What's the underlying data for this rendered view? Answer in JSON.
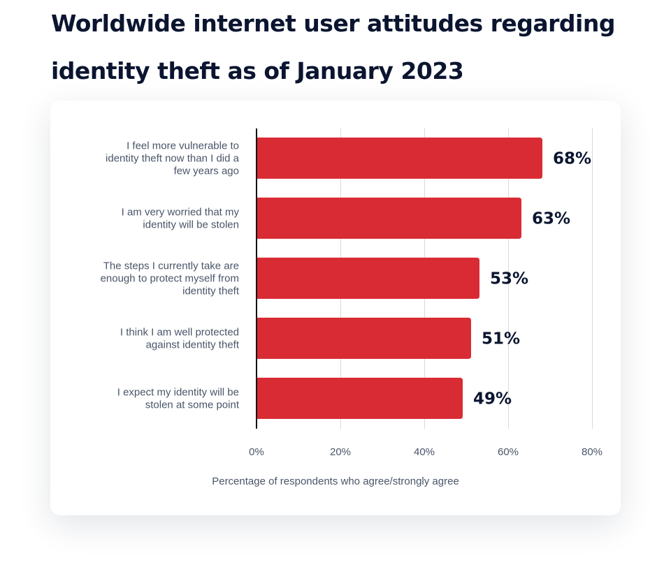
{
  "page": {
    "title_line1": "Worldwide internet user attitudes regarding",
    "title_line2": "identity theft as of January 2023"
  },
  "chart_data": {
    "type": "bar",
    "orientation": "horizontal",
    "categories": [
      "I feel more vulnerable to identity theft now than I did a few years ago",
      "I am very worried that my identity will be stolen",
      "The steps I currently take are enough to protect myself from identity theft",
      "I think I am well protected against identity theft",
      "I expect my identity will be stolen at some point"
    ],
    "category_lines": [
      [
        "I feel more vulnerable to",
        "identity theft now than I did a",
        "few years ago"
      ],
      [
        "I am very worried that my",
        "identity will be stolen"
      ],
      [
        "The steps I currently take are",
        "enough to protect myself from",
        "identity theft"
      ],
      [
        "I think I am well protected",
        "against identity theft"
      ],
      [
        "I expect my identity will be",
        "stolen at some point"
      ]
    ],
    "values": [
      68,
      63,
      53,
      51,
      49
    ],
    "data_labels": [
      "68%",
      "63%",
      "53%",
      "51%",
      "49%"
    ],
    "xlabel": "Percentage of respondents who agree/strongly agree",
    "xlim": [
      0,
      80
    ],
    "x_ticks": [
      0,
      20,
      40,
      60,
      80
    ],
    "x_tick_labels": [
      "0%",
      "20%",
      "40%",
      "60%",
      "80%"
    ],
    "grid": true,
    "bar_color": "#d92b33",
    "gridline_color": "#d9d9d9",
    "axis_color": "#111111"
  }
}
